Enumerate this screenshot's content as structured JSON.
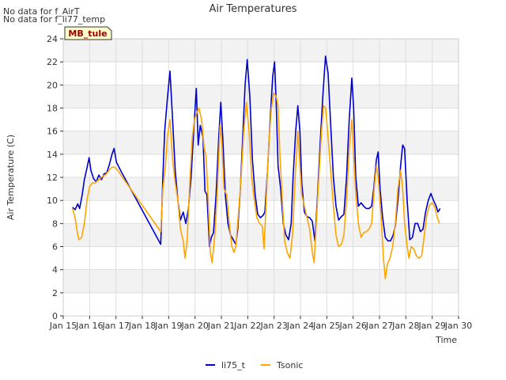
{
  "notes": [
    "No data for f_AirT",
    "No data for f_li77_temp"
  ],
  "badge": "MB_tule",
  "chart_data": {
    "type": "line",
    "title": "Air Temperatures",
    "xlabel": "Time",
    "ylabel": "Air Temperature (C)",
    "ylim": [
      0,
      24
    ],
    "yticks": [
      0,
      2,
      4,
      6,
      8,
      10,
      12,
      14,
      16,
      18,
      20,
      22,
      24
    ],
    "xlim": [
      15,
      30
    ],
    "xticks": [
      15,
      16,
      17,
      18,
      19,
      20,
      21,
      22,
      23,
      24,
      25,
      26,
      27,
      28,
      29,
      30
    ],
    "xtick_labels": [
      "Jan 15",
      "Jan 16",
      "Jan 17",
      "Jan 18",
      "Jan 19",
      "Jan 20",
      "Jan 21",
      "Jan 22",
      "Jan 23",
      "Jan 24",
      "Jan 25",
      "Jan 26",
      "Jan 27",
      "Jan 28",
      "Jan 29",
      "Jan 30"
    ],
    "grid": true,
    "legend_position": "bottom-center",
    "series": [
      {
        "name": "li75_t",
        "color": "#0000cc",
        "points": [
          [
            15.35,
            9.4
          ],
          [
            15.45,
            9.2
          ],
          [
            15.55,
            9.7
          ],
          [
            15.62,
            9.3
          ],
          [
            15.72,
            10.5
          ],
          [
            15.8,
            11.8
          ],
          [
            15.9,
            12.8
          ],
          [
            15.98,
            13.7
          ],
          [
            16.05,
            12.6
          ],
          [
            16.15,
            11.9
          ],
          [
            16.25,
            11.6
          ],
          [
            16.35,
            12.2
          ],
          [
            16.45,
            11.8
          ],
          [
            16.55,
            12.3
          ],
          [
            16.65,
            12.4
          ],
          [
            16.75,
            13.1
          ],
          [
            16.85,
            14.0
          ],
          [
            16.93,
            14.5
          ],
          [
            17.02,
            13.3
          ],
          [
            17.2,
            12.5
          ],
          [
            18.7,
            6.2
          ],
          [
            18.78,
            12.0
          ],
          [
            18.85,
            16.0
          ],
          [
            18.95,
            18.8
          ],
          [
            19.05,
            21.2
          ],
          [
            19.15,
            17.0
          ],
          [
            19.25,
            12.5
          ],
          [
            19.35,
            10.0
          ],
          [
            19.45,
            8.3
          ],
          [
            19.55,
            9.0
          ],
          [
            19.65,
            8.0
          ],
          [
            19.75,
            9.3
          ],
          [
            19.85,
            12.0
          ],
          [
            19.95,
            16.0
          ],
          [
            20.05,
            19.7
          ],
          [
            20.12,
            14.8
          ],
          [
            20.2,
            16.5
          ],
          [
            20.3,
            15.5
          ],
          [
            20.38,
            10.8
          ],
          [
            20.45,
            10.5
          ],
          [
            20.55,
            6.0
          ],
          [
            20.62,
            6.8
          ],
          [
            20.7,
            7.2
          ],
          [
            20.8,
            10.5
          ],
          [
            20.9,
            15.5
          ],
          [
            20.98,
            18.5
          ],
          [
            21.05,
            15.5
          ],
          [
            21.15,
            10.5
          ],
          [
            21.25,
            8.0
          ],
          [
            21.35,
            7.0
          ],
          [
            21.45,
            6.6
          ],
          [
            21.55,
            6.2
          ],
          [
            21.62,
            7.5
          ],
          [
            21.72,
            11.0
          ],
          [
            21.8,
            15.0
          ],
          [
            21.9,
            20.0
          ],
          [
            21.98,
            22.2
          ],
          [
            22.08,
            19.0
          ],
          [
            22.18,
            13.5
          ],
          [
            22.28,
            10.5
          ],
          [
            22.38,
            8.8
          ],
          [
            22.48,
            8.5
          ],
          [
            22.58,
            8.7
          ],
          [
            22.65,
            9.0
          ],
          [
            22.75,
            12.5
          ],
          [
            22.85,
            17.0
          ],
          [
            22.95,
            20.8
          ],
          [
            23.02,
            22.0
          ],
          [
            23.08,
            18.5
          ],
          [
            23.15,
            13.0
          ],
          [
            23.25,
            11.0
          ],
          [
            23.35,
            8.0
          ],
          [
            23.45,
            7.0
          ],
          [
            23.55,
            6.6
          ],
          [
            23.65,
            8.0
          ],
          [
            23.72,
            12.0
          ],
          [
            23.82,
            16.0
          ],
          [
            23.9,
            18.2
          ],
          [
            23.98,
            16.0
          ],
          [
            24.05,
            11.5
          ],
          [
            24.15,
            9.0
          ],
          [
            24.25,
            8.6
          ],
          [
            24.35,
            8.5
          ],
          [
            24.45,
            8.2
          ],
          [
            24.55,
            6.5
          ],
          [
            24.65,
            10.5
          ],
          [
            24.75,
            15.0
          ],
          [
            24.85,
            19.0
          ],
          [
            24.95,
            22.5
          ],
          [
            25.05,
            21.0
          ],
          [
            25.15,
            16.5
          ],
          [
            25.25,
            12.0
          ],
          [
            25.35,
            9.5
          ],
          [
            25.45,
            8.3
          ],
          [
            25.55,
            8.6
          ],
          [
            25.65,
            8.8
          ],
          [
            25.75,
            12.0
          ],
          [
            25.85,
            17.0
          ],
          [
            25.95,
            20.6
          ],
          [
            26.02,
            18.0
          ],
          [
            26.1,
            12.0
          ],
          [
            26.2,
            9.5
          ],
          [
            26.3,
            9.8
          ],
          [
            26.4,
            9.5
          ],
          [
            26.5,
            9.3
          ],
          [
            26.6,
            9.3
          ],
          [
            26.7,
            9.5
          ],
          [
            26.78,
            11.0
          ],
          [
            26.88,
            13.5
          ],
          [
            26.95,
            14.2
          ],
          [
            27.02,
            11.0
          ],
          [
            27.12,
            8.5
          ],
          [
            27.22,
            6.8
          ],
          [
            27.32,
            6.5
          ],
          [
            27.42,
            6.5
          ],
          [
            27.52,
            7.0
          ],
          [
            27.6,
            7.8
          ],
          [
            27.7,
            10.0
          ],
          [
            27.8,
            13.0
          ],
          [
            27.88,
            14.8
          ],
          [
            27.95,
            14.5
          ],
          [
            28.05,
            10.0
          ],
          [
            28.15,
            6.6
          ],
          [
            28.25,
            6.8
          ],
          [
            28.35,
            8.0
          ],
          [
            28.45,
            8.0
          ],
          [
            28.55,
            7.3
          ],
          [
            28.65,
            7.5
          ],
          [
            28.75,
            9.0
          ],
          [
            28.85,
            10.0
          ],
          [
            28.95,
            10.6
          ],
          [
            29.05,
            10.0
          ],
          [
            29.15,
            9.5
          ],
          [
            29.22,
            9.0
          ],
          [
            29.3,
            9.3
          ]
        ]
      },
      {
        "name": "Tsonic",
        "color": "#ffa500",
        "points": [
          [
            15.35,
            9.3
          ],
          [
            15.45,
            8.5
          ],
          [
            15.55,
            7.0
          ],
          [
            15.6,
            6.6
          ],
          [
            15.7,
            6.8
          ],
          [
            15.8,
            8.0
          ],
          [
            15.9,
            10.0
          ],
          [
            16.0,
            11.2
          ],
          [
            16.1,
            11.5
          ],
          [
            16.2,
            11.5
          ],
          [
            16.3,
            11.7
          ],
          [
            16.4,
            11.9
          ],
          [
            16.5,
            12.1
          ],
          [
            16.6,
            12.2
          ],
          [
            16.7,
            12.5
          ],
          [
            16.8,
            12.8
          ],
          [
            16.9,
            12.9
          ],
          [
            17.0,
            12.8
          ],
          [
            18.7,
            7.3
          ],
          [
            18.78,
            11.0
          ],
          [
            18.88,
            13.0
          ],
          [
            18.95,
            15.5
          ],
          [
            19.05,
            17.0
          ],
          [
            19.15,
            13.5
          ],
          [
            19.25,
            11.5
          ],
          [
            19.35,
            10.0
          ],
          [
            19.45,
            7.5
          ],
          [
            19.55,
            6.5
          ],
          [
            19.62,
            5.0
          ],
          [
            19.7,
            6.5
          ],
          [
            19.8,
            11.5
          ],
          [
            19.9,
            15.5
          ],
          [
            19.98,
            17.0
          ],
          [
            20.05,
            17.5
          ],
          [
            20.15,
            18.0
          ],
          [
            20.25,
            17.0
          ],
          [
            20.35,
            14.5
          ],
          [
            20.42,
            13.8
          ],
          [
            20.5,
            10.0
          ],
          [
            20.58,
            5.5
          ],
          [
            20.65,
            4.6
          ],
          [
            20.75,
            7.0
          ],
          [
            20.85,
            11.0
          ],
          [
            20.95,
            16.5
          ],
          [
            21.02,
            15.0
          ],
          [
            21.1,
            11.0
          ],
          [
            21.2,
            10.5
          ],
          [
            21.3,
            8.0
          ],
          [
            21.4,
            6.0
          ],
          [
            21.48,
            5.5
          ],
          [
            21.55,
            6.0
          ],
          [
            21.65,
            9.0
          ],
          [
            21.75,
            12.0
          ],
          [
            21.85,
            16.0
          ],
          [
            21.95,
            18.5
          ],
          [
            22.05,
            16.0
          ],
          [
            22.15,
            12.0
          ],
          [
            22.25,
            10.0
          ],
          [
            22.35,
            8.5
          ],
          [
            22.45,
            8.0
          ],
          [
            22.55,
            7.8
          ],
          [
            22.62,
            5.8
          ],
          [
            22.7,
            10.0
          ],
          [
            22.8,
            15.0
          ],
          [
            22.9,
            18.0
          ],
          [
            22.98,
            19.3
          ],
          [
            23.08,
            19.0
          ],
          [
            23.15,
            18.2
          ],
          [
            23.22,
            14.0
          ],
          [
            23.3,
            10.5
          ],
          [
            23.4,
            6.5
          ],
          [
            23.5,
            5.5
          ],
          [
            23.6,
            5.0
          ],
          [
            23.7,
            7.0
          ],
          [
            23.8,
            12.0
          ],
          [
            23.9,
            16.0
          ],
          [
            23.98,
            13.0
          ],
          [
            24.05,
            10.5
          ],
          [
            24.15,
            9.5
          ],
          [
            24.25,
            8.5
          ],
          [
            24.35,
            7.5
          ],
          [
            24.45,
            5.5
          ],
          [
            24.52,
            4.6
          ],
          [
            24.6,
            8.0
          ],
          [
            24.7,
            12.0
          ],
          [
            24.8,
            16.0
          ],
          [
            24.88,
            18.2
          ],
          [
            24.95,
            18.0
          ],
          [
            25.05,
            15.5
          ],
          [
            25.15,
            12.5
          ],
          [
            25.25,
            9.5
          ],
          [
            25.35,
            7.0
          ],
          [
            25.45,
            6.0
          ],
          [
            25.55,
            6.2
          ],
          [
            25.65,
            7.0
          ],
          [
            25.75,
            10.0
          ],
          [
            25.85,
            14.5
          ],
          [
            25.95,
            17.0
          ],
          [
            26.02,
            14.0
          ],
          [
            26.1,
            10.5
          ],
          [
            26.2,
            8.0
          ],
          [
            26.3,
            6.8
          ],
          [
            26.4,
            7.2
          ],
          [
            26.5,
            7.3
          ],
          [
            26.6,
            7.5
          ],
          [
            26.7,
            8.0
          ],
          [
            26.8,
            11.0
          ],
          [
            26.88,
            13.0
          ],
          [
            26.95,
            12.0
          ],
          [
            27.05,
            9.0
          ],
          [
            27.15,
            5.0
          ],
          [
            27.22,
            3.2
          ],
          [
            27.3,
            4.5
          ],
          [
            27.4,
            5.0
          ],
          [
            27.5,
            6.0
          ],
          [
            27.6,
            8.0
          ],
          [
            27.7,
            11.0
          ],
          [
            27.8,
            12.6
          ],
          [
            27.88,
            11.0
          ],
          [
            27.95,
            8.0
          ],
          [
            28.05,
            6.0
          ],
          [
            28.12,
            5.0
          ],
          [
            28.2,
            6.0
          ],
          [
            28.3,
            5.8
          ],
          [
            28.4,
            5.2
          ],
          [
            28.5,
            5.0
          ],
          [
            28.6,
            5.2
          ],
          [
            28.7,
            7.0
          ],
          [
            28.8,
            8.8
          ],
          [
            28.9,
            9.6
          ],
          [
            29.0,
            9.8
          ],
          [
            29.1,
            9.4
          ],
          [
            29.2,
            8.5
          ],
          [
            29.28,
            8.0
          ]
        ]
      }
    ]
  }
}
